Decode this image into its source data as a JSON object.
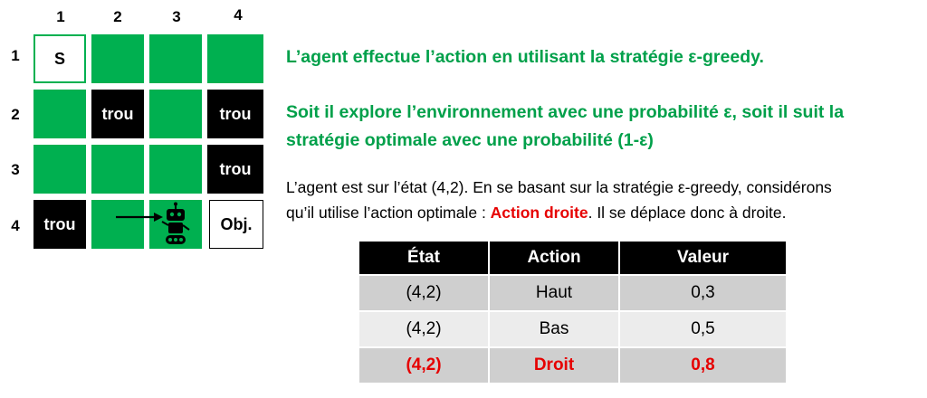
{
  "grid": {
    "col_labels": [
      "1",
      "2",
      "3",
      "4"
    ],
    "row_labels": [
      "1",
      "2",
      "3",
      "4"
    ],
    "cells": [
      [
        "S",
        "",
        "",
        ""
      ],
      [
        "",
        "trou",
        "",
        "trou"
      ],
      [
        "",
        "",
        "",
        "trou"
      ],
      [
        "trou",
        "",
        "",
        "Obj."
      ]
    ],
    "agent_icon": "robot-icon",
    "move_icon": "arrow-right-icon",
    "colors": {
      "free": "#00b050",
      "hole": "#000000",
      "start_goal": "#ffffff"
    }
  },
  "headline": {
    "line1": "L’agent  effectue l’action en utilisant la stratégie ε-greedy.",
    "line2a": "Soit il explore l’environnement avec une probabilité ε, soit il suit la",
    "line2b": "stratégie optimale avec une probabilité (1-ε)"
  },
  "body": {
    "line1": "L’agent est sur l’état (4,2). En se basant sur la stratégie ε-greedy, considérons",
    "line2_prefix": "qu’il utilise l’action optimale : ",
    "line2_highlight": "Action droite",
    "line2_suffix": ". Il se déplace donc à droite."
  },
  "table": {
    "headers": [
      "État",
      "Action",
      "Valeur"
    ],
    "rows": [
      [
        "(4,2)",
        "Haut",
        "0,3"
      ],
      [
        "(4,2)",
        "Bas",
        "0,5"
      ],
      [
        "(4,2)",
        "Droit",
        "0,8"
      ]
    ]
  },
  "accent": {
    "green": "#00a04a",
    "red": "#e60000"
  }
}
